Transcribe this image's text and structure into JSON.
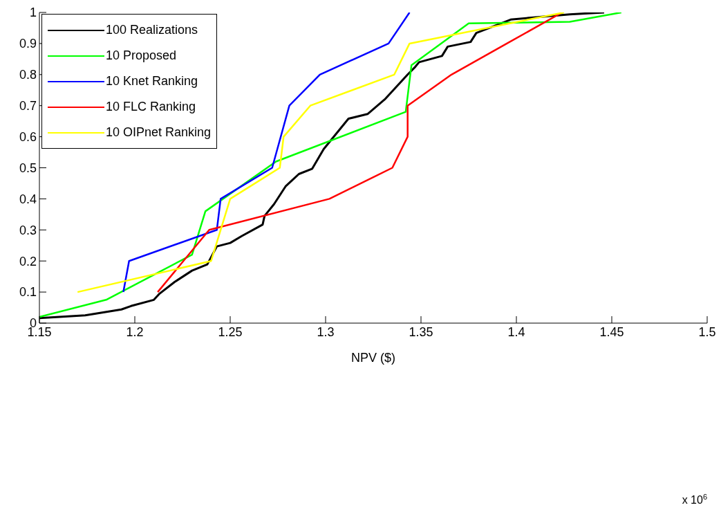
{
  "chart_data": {
    "type": "line",
    "xlabel": "NPV ($)",
    "annotations": [
      "x 10$^{6}$"
    ],
    "xlim": [
      1.15,
      1.5
    ],
    "xticks": [
      1.15,
      1.2,
      1.25,
      1.3,
      1.35,
      1.4,
      1.45,
      1.5
    ],
    "ylim": [
      0,
      1
    ],
    "yticks": [
      0,
      0.1,
      0.2,
      0.3,
      0.4,
      0.5,
      0.6,
      0.7,
      0.8,
      0.9,
      1
    ],
    "grid": false,
    "legend": "top left",
    "marker": "none",
    "line_style": "solid",
    "series": [
      {
        "name": "100 Realizations",
        "color": "#000000",
        "x": [
          1.15,
          1.174,
          1.193,
          1.198,
          1.21,
          1.213,
          1.221,
          1.23,
          1.238,
          1.243,
          1.25,
          1.256,
          1.267,
          1.268,
          1.273,
          1.279,
          1.286,
          1.293,
          1.299,
          1.312,
          1.322,
          1.331,
          1.343,
          1.347,
          1.349,
          1.361,
          1.364,
          1.376,
          1.379,
          1.397,
          1.409,
          1.428,
          1.446
        ],
        "values": [
          0.016,
          0.025,
          0.044,
          0.055,
          0.075,
          0.095,
          0.133,
          0.169,
          0.189,
          0.247,
          0.258,
          0.28,
          0.317,
          0.345,
          0.383,
          0.44,
          0.48,
          0.497,
          0.56,
          0.658,
          0.673,
          0.72,
          0.8,
          0.825,
          0.84,
          0.86,
          0.89,
          0.905,
          0.934,
          0.977,
          0.984,
          0.994,
          1.0
        ]
      },
      {
        "name": "10 Proposed",
        "color": "#00ff00",
        "x": [
          1.15,
          1.185,
          1.23,
          1.237,
          1.274,
          1.342,
          1.345,
          1.375,
          1.428,
          1.455
        ],
        "values": [
          0.02,
          0.075,
          0.22,
          0.36,
          0.52,
          0.68,
          0.83,
          0.965,
          0.97,
          1.0
        ]
      },
      {
        "name": "10 Knet Ranking",
        "color": "#0000ff",
        "x": [
          1.194,
          1.197,
          1.243,
          1.245,
          1.272,
          1.281,
          1.297,
          1.333,
          1.344
        ],
        "values": [
          0.1,
          0.2,
          0.3,
          0.4,
          0.5,
          0.7,
          0.8,
          0.9,
          1.0
        ]
      },
      {
        "name": "10 FLC Ranking",
        "color": "#ff0000",
        "x": [
          1.212,
          1.239,
          1.302,
          1.335,
          1.343,
          1.343,
          1.366,
          1.395,
          1.424
        ],
        "values": [
          0.1,
          0.3,
          0.4,
          0.5,
          0.6,
          0.7,
          0.8,
          0.9,
          1.0
        ]
      },
      {
        "name": "10 OIPnet Ranking",
        "color": "#ffff00",
        "x": [
          1.17,
          1.24,
          1.25,
          1.276,
          1.278,
          1.292,
          1.336,
          1.344,
          1.425
        ],
        "values": [
          0.1,
          0.2,
          0.4,
          0.5,
          0.6,
          0.7,
          0.8,
          0.9,
          1.0
        ]
      }
    ]
  }
}
